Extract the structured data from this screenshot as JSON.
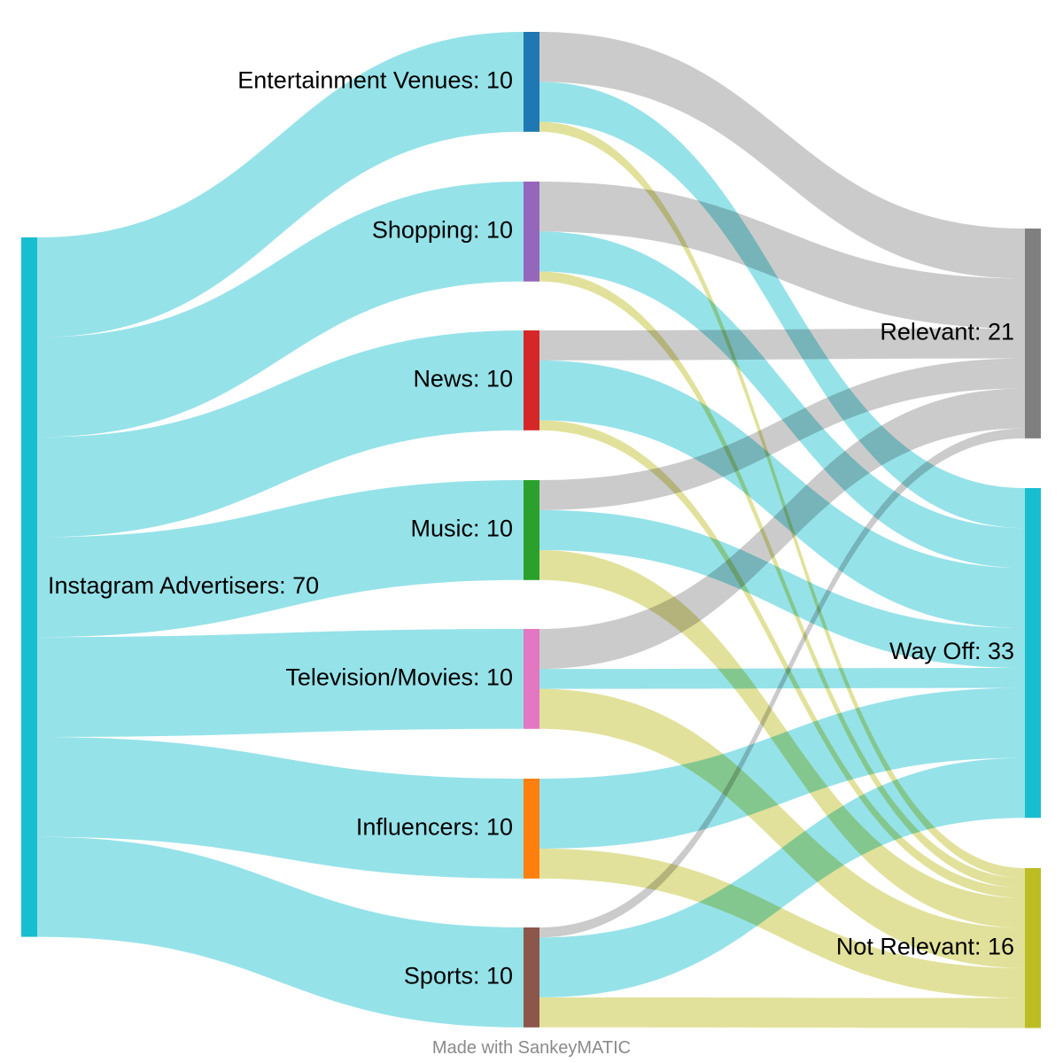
{
  "chart_data": {
    "type": "sankey",
    "credit": "Made with SankeyMATIC",
    "nodes": [
      {
        "id": "ia",
        "label": "Instagram Advertisers: 70",
        "color": "#17becf",
        "column": 0
      },
      {
        "id": "ent",
        "label": "Entertainment Venues: 10",
        "color": "#1f77b4",
        "column": 1
      },
      {
        "id": "sho",
        "label": "Shopping: 10",
        "color": "#9467bd",
        "column": 1
      },
      {
        "id": "new",
        "label": "News: 10",
        "color": "#d62728",
        "column": 1
      },
      {
        "id": "mus",
        "label": "Music: 10",
        "color": "#2ca02c",
        "column": 1
      },
      {
        "id": "tv",
        "label": "Television/Movies: 10",
        "color": "#e377c2",
        "column": 1
      },
      {
        "id": "inf",
        "label": "Influencers: 10",
        "color": "#ff7f0e",
        "column": 1
      },
      {
        "id": "spo",
        "label": "Sports: 10",
        "color": "#8c564b",
        "column": 1
      },
      {
        "id": "rel",
        "label": "Relevant: 21",
        "color": "#7f7f7f",
        "column": 2
      },
      {
        "id": "way",
        "label": "Way Off: 33",
        "color": "#17becf",
        "column": 2
      },
      {
        "id": "not",
        "label": "Not Relevant: 16",
        "color": "#bcbd22",
        "column": 2
      }
    ],
    "links": [
      {
        "source": "ia",
        "target": "ent",
        "value": 10
      },
      {
        "source": "ia",
        "target": "sho",
        "value": 10
      },
      {
        "source": "ia",
        "target": "new",
        "value": 10
      },
      {
        "source": "ia",
        "target": "mus",
        "value": 10
      },
      {
        "source": "ia",
        "target": "tv",
        "value": 10
      },
      {
        "source": "ia",
        "target": "inf",
        "value": 10
      },
      {
        "source": "ia",
        "target": "spo",
        "value": 10
      },
      {
        "source": "ent",
        "target": "rel",
        "value": 5
      },
      {
        "source": "ent",
        "target": "way",
        "value": 4
      },
      {
        "source": "ent",
        "target": "not",
        "value": 1
      },
      {
        "source": "sho",
        "target": "rel",
        "value": 5
      },
      {
        "source": "sho",
        "target": "way",
        "value": 4
      },
      {
        "source": "sho",
        "target": "not",
        "value": 1
      },
      {
        "source": "new",
        "target": "rel",
        "value": 3
      },
      {
        "source": "new",
        "target": "way",
        "value": 6
      },
      {
        "source": "new",
        "target": "not",
        "value": 1
      },
      {
        "source": "mus",
        "target": "rel",
        "value": 3
      },
      {
        "source": "mus",
        "target": "way",
        "value": 4
      },
      {
        "source": "mus",
        "target": "not",
        "value": 3
      },
      {
        "source": "tv",
        "target": "rel",
        "value": 4
      },
      {
        "source": "tv",
        "target": "way",
        "value": 2
      },
      {
        "source": "tv",
        "target": "not",
        "value": 4
      },
      {
        "source": "inf",
        "target": "way",
        "value": 7
      },
      {
        "source": "inf",
        "target": "not",
        "value": 3
      },
      {
        "source": "spo",
        "target": "rel",
        "value": 1
      },
      {
        "source": "spo",
        "target": "way",
        "value": 6
      },
      {
        "source": "spo",
        "target": "not",
        "value": 3
      }
    ]
  }
}
